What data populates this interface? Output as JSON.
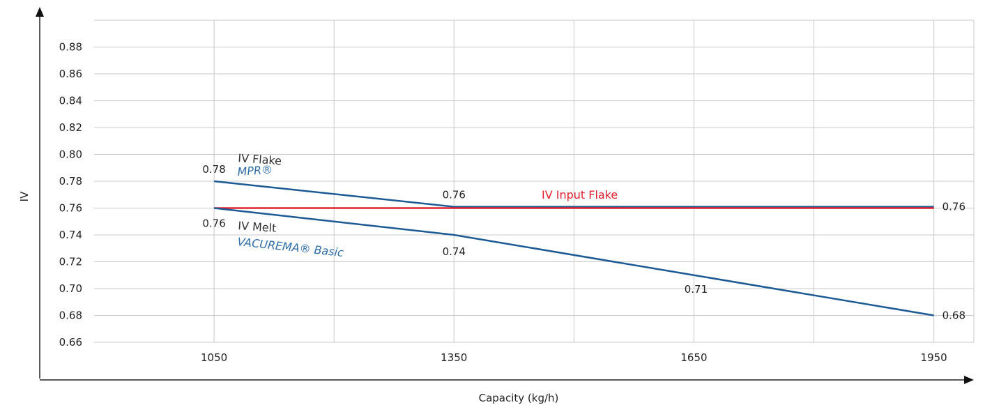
{
  "chart_data": {
    "type": "line",
    "title": "",
    "xlabel": "Capacity (kg/h)",
    "ylabel": "IV",
    "xlim": [
      900,
      2000
    ],
    "ylim": [
      0.66,
      0.9
    ],
    "x_ticks": [
      1050,
      1350,
      1650,
      1950
    ],
    "x_tick_labels": [
      "1050",
      "1350",
      "1650",
      "1950"
    ],
    "x_gridlines": [
      1050,
      1200,
      1350,
      1500,
      1650,
      1800,
      1950
    ],
    "y_ticks": [
      0.66,
      0.68,
      0.7,
      0.72,
      0.74,
      0.76,
      0.78,
      0.8,
      0.82,
      0.84,
      0.86,
      0.88
    ],
    "y_tick_labels": [
      "0.66",
      "0.68",
      "0.70",
      "0.72",
      "0.74",
      "0.76",
      "0.78",
      "0.80",
      "0.82",
      "0.84",
      "0.86",
      "0.88"
    ],
    "grid": true,
    "series": [
      {
        "key": "mpr",
        "color": "#1d5a94",
        "points": [
          [
            1050,
            0.78
          ],
          [
            1350,
            0.761
          ],
          [
            1950,
            0.761
          ]
        ],
        "point_labels": [
          {
            "text": "0.78",
            "x": 1050,
            "y": 0.78
          },
          {
            "text": "0.76",
            "x": 1350,
            "y": 0.761
          },
          {
            "text": "0.76",
            "x": 1950,
            "y": 0.761
          }
        ]
      },
      {
        "key": "input_flake",
        "color": "#e0202e",
        "points": [
          [
            1050,
            0.76
          ],
          [
            1950,
            0.76
          ]
        ],
        "point_labels": []
      },
      {
        "key": "vacurema",
        "color": "#1d5a94",
        "points": [
          [
            1050,
            0.76
          ],
          [
            1350,
            0.74
          ],
          [
            1650,
            0.71
          ],
          [
            1950,
            0.68
          ]
        ],
        "point_labels": [
          {
            "text": "0.76",
            "x": 1050,
            "y": 0.76
          },
          {
            "text": "0.74",
            "x": 1350,
            "y": 0.74
          },
          {
            "text": "0.71",
            "x": 1650,
            "y": 0.71
          },
          {
            "text": "0.68",
            "x": 1950,
            "y": 0.68
          }
        ]
      }
    ],
    "annotations": [
      {
        "text": "IV Flake",
        "color": "#333333"
      },
      {
        "text": "MPR®",
        "color": "#2f6ea5"
      },
      {
        "text": "IV Input Flake",
        "color": "#e0202e"
      },
      {
        "text": "IV Melt",
        "color": "#333333"
      },
      {
        "text": "VACUREMA® Basic",
        "color": "#2f6ea5"
      }
    ]
  }
}
